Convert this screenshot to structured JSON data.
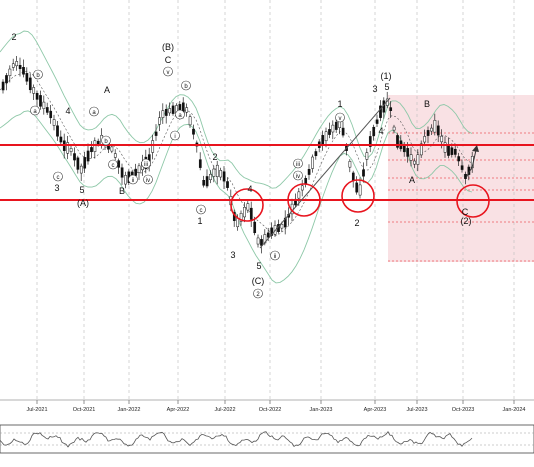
{
  "chart_data": {
    "type": "candlestick",
    "price_panel": {
      "x_axis_labels": [
        "Jul-2021",
        "Oct-2021",
        "Jan-2022",
        "Apr-2022",
        "Jul-2022",
        "Oct-2022",
        "Jan-2023",
        "Apr-2023",
        "Jul-2023",
        "Oct-2023",
        "Jan-2024"
      ],
      "horizontal_levels_red": [
        "upper-resistance",
        "lower-support"
      ],
      "fib_levels_count": 6,
      "wave_labels": [
        {
          "text": "2",
          "time": "2021-05"
        },
        {
          "text": "b",
          "time": "2021-06-20"
        },
        {
          "text": "a",
          "time": "2021-07-25"
        },
        {
          "text": "4",
          "time": "2021-08-30"
        },
        {
          "text": "3",
          "time": "2021-09-10"
        },
        {
          "text": "c",
          "time": "2021-09-10"
        },
        {
          "text": "(A)",
          "time": "2021-09-25"
        },
        {
          "text": "5",
          "time": "2021-10-05"
        },
        {
          "text": "A",
          "time": "2021-11-20"
        },
        {
          "text": "a",
          "time": "2021-11-10"
        },
        {
          "text": "c",
          "time": "2021-12-05"
        },
        {
          "text": "b",
          "time": "2021-12-01"
        },
        {
          "text": "B",
          "time": "2021-12-20"
        },
        {
          "text": "ii",
          "time": "2022-01-10"
        },
        {
          "text": "iv",
          "time": "2022-02-10"
        },
        {
          "text": "iii",
          "time": "2022-02-25"
        },
        {
          "text": "(B)",
          "time": "2022-03-15"
        },
        {
          "text": "C",
          "time": "2022-03-15"
        },
        {
          "text": "v",
          "time": "2022-03-15"
        },
        {
          "text": "b",
          "time": "2022-04-15"
        },
        {
          "text": "a",
          "time": "2022-04-10"
        },
        {
          "text": "i",
          "time": "2022-05-01"
        },
        {
          "text": "c",
          "time": "2022-06-01"
        },
        {
          "text": "1",
          "time": "2022-06-01"
        },
        {
          "text": "2",
          "time": "2022-07-01"
        },
        {
          "text": "4",
          "time": "2022-09-01"
        },
        {
          "text": "3",
          "time": "2022-08-10"
        },
        {
          "text": "5",
          "time": "2022-09-30"
        },
        {
          "text": "ii",
          "time": "2022-10-25"
        },
        {
          "text": "(C)",
          "time": "2022-10-10"
        },
        {
          "text": "2",
          "time": "2022-10-10"
        },
        {
          "text": "iv",
          "time": "2022-12-05"
        },
        {
          "text": "iii",
          "time": "2022-12-10"
        },
        {
          "text": "1",
          "time": "2023-01-25"
        },
        {
          "text": "v",
          "time": "2023-01-25"
        },
        {
          "text": "2",
          "time": "2023-03-10"
        },
        {
          "text": "3",
          "time": "2023-04-05"
        },
        {
          "text": "(1)",
          "time": "2023-04-25"
        },
        {
          "text": "5",
          "time": "2023-04-25"
        },
        {
          "text": "4",
          "time": "2023-05-01"
        },
        {
          "text": "B",
          "time": "2023-07-25"
        },
        {
          "text": "A",
          "time": "2023-06-15"
        },
        {
          "text": "C",
          "time": "2023-10-01"
        },
        {
          "text": "(2)",
          "time": "2023-10-01"
        }
      ],
      "circled_highlights": 4
    },
    "oscillator_panel": {
      "present": true
    },
    "grid": "vertical-dashed"
  }
}
